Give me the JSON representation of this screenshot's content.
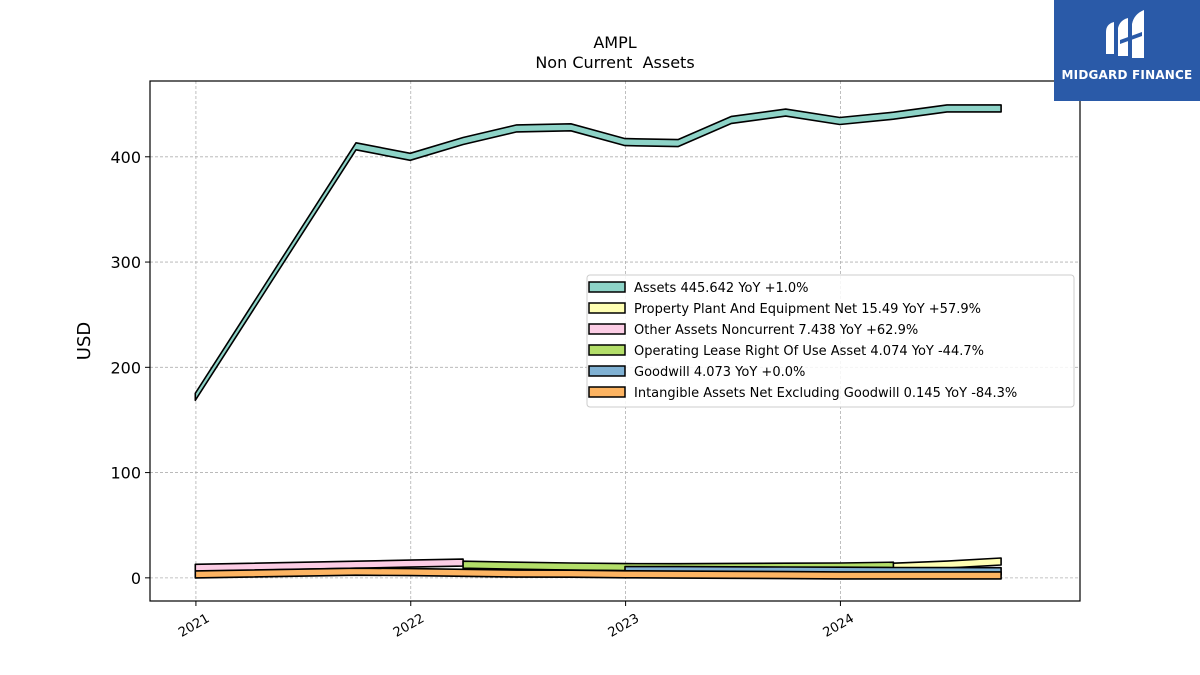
{
  "chart_data": {
    "type": "area",
    "title": "AMPL",
    "subtitle": "Non Current  Assets",
    "ylabel": "USD",
    "xlabel": "",
    "ylim": [
      -22,
      472
    ],
    "yticks": [
      0,
      100,
      200,
      300,
      400
    ],
    "xlim": [
      "2020-10-15",
      "2025-02-11"
    ],
    "xticks": [
      "2021",
      "2022",
      "2023",
      "2024"
    ],
    "grid": true,
    "legend_position": "center-right",
    "dates": [
      "2020-12-31",
      "2021-09-30",
      "2021-12-31",
      "2022-03-31",
      "2022-06-30",
      "2022-09-30",
      "2022-12-31",
      "2023-03-31",
      "2023-06-30",
      "2023-09-30",
      "2023-12-31",
      "2024-03-31",
      "2024-06-30",
      "2024-09-30"
    ],
    "series": [
      {
        "name": "Assets",
        "label": "Assets  445.642 YoY +1.0%",
        "color": "#8dd3c7",
        "values": [
          172,
          410,
          400,
          415,
          427,
          428,
          414,
          413,
          435,
          442,
          434,
          439,
          446,
          446
        ]
      },
      {
        "name": "Property Plant And Equipment Net",
        "label": "Property Plant And Equipment Net  15.49 YoY +57.9%",
        "color": "#ffffb3",
        "values": [
          null,
          null,
          null,
          null,
          null,
          null,
          null,
          null,
          null,
          null,
          9.8,
          10.6,
          12.6,
          15.49
        ]
      },
      {
        "name": "Other Assets Noncurrent",
        "label": "Other Assets Noncurrent  7.438 YoY +62.9%",
        "color": "#fccde5",
        "values": [
          9.5,
          12.5,
          13.5,
          14.5,
          null,
          null,
          null,
          null,
          null,
          null,
          null,
          null,
          null,
          null
        ]
      },
      {
        "name": "Operating Lease Right Of Use Asset",
        "label": "Operating Lease Right Of Use Asset  4.074 YoY -44.7%",
        "color": "#b3de69",
        "values": [
          null,
          null,
          null,
          12.5,
          11.5,
          10.8,
          10.2,
          10.1,
          10.4,
          10.6,
          10.8,
          11.5,
          null,
          null
        ]
      },
      {
        "name": "Goodwill",
        "label": "Goodwill  4.073 YoY +0.0%",
        "color": "#80b1d3",
        "values": [
          null,
          null,
          null,
          null,
          null,
          null,
          7.4,
          7.4,
          7.2,
          7.0,
          6.8,
          6.5,
          6.4,
          6.3
        ]
      },
      {
        "name": "Intangible Assets Net Excluding Goodwill",
        "label": "Intangible Assets Net Excluding Goodwill  0.145 YoY -84.3%",
        "color": "#fdb462",
        "values": [
          3.3,
          5.8,
          5.5,
          4.8,
          4.0,
          3.9,
          3.4,
          3.1,
          2.9,
          2.6,
          2.3,
          2.3,
          2.3,
          2.3
        ]
      }
    ]
  },
  "logo": {
    "text": "MIDGARD FINANCE",
    "bg_color": "#2a5aa8"
  }
}
